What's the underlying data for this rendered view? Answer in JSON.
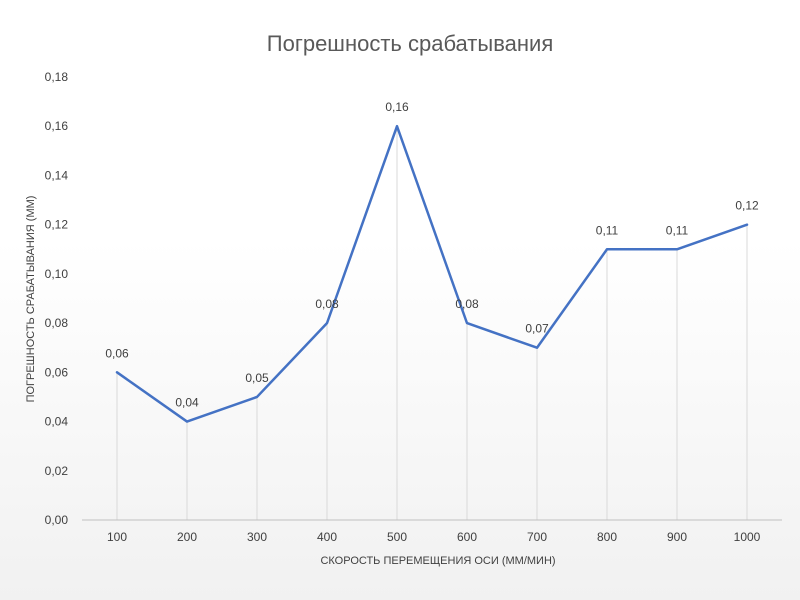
{
  "chart_data": {
    "type": "line",
    "title": "Погрешность срабатывания",
    "xlabel": "СКОРОСТЬ ПЕРЕМЕЩЕНИЯ ОСИ (ММ/МИН)",
    "ylabel": "ПОГРЕШНОСТЬ СРАБАТЫВАНИЯ (ММ)",
    "categories": [
      "100",
      "200",
      "300",
      "400",
      "500",
      "600",
      "700",
      "800",
      "900",
      "1000"
    ],
    "series": [
      {
        "values": [
          0.06,
          0.04,
          0.05,
          0.08,
          0.16,
          0.08,
          0.07,
          0.11,
          0.11,
          0.12
        ],
        "labels": [
          "0,06",
          "0,04",
          "0,05",
          "0,08",
          "0,16",
          "0,08",
          "0,07",
          "0,11",
          "0,11",
          "0,12"
        ],
        "color": "#4472C4"
      }
    ],
    "ylim": [
      0,
      0.18
    ],
    "yticks": [
      "0,00",
      "0,02",
      "0,04",
      "0,06",
      "0,08",
      "0,10",
      "0,12",
      "0,14",
      "0,16",
      "0,18"
    ],
    "grid": "vertical drop lines",
    "legend": "none"
  }
}
